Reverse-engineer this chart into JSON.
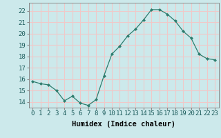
{
  "x": [
    0,
    1,
    2,
    3,
    4,
    5,
    6,
    7,
    8,
    9,
    10,
    11,
    12,
    13,
    14,
    15,
    16,
    17,
    18,
    19,
    20,
    21,
    22,
    23
  ],
  "y": [
    15.8,
    15.6,
    15.5,
    15.0,
    14.1,
    14.5,
    13.9,
    13.7,
    14.2,
    16.3,
    18.2,
    18.9,
    19.8,
    20.4,
    21.2,
    22.1,
    22.1,
    21.7,
    21.1,
    20.2,
    19.6,
    18.2,
    17.8,
    17.7
  ],
  "line_color": "#2e7d6e",
  "marker": "D",
  "marker_size": 2.0,
  "bg_color": "#cce9eb",
  "grid_color": "#f0c8c8",
  "xlabel": "Humidex (Indice chaleur)",
  "xlabel_fontsize": 7.5,
  "ylabel_ticks": [
    14,
    15,
    16,
    17,
    18,
    19,
    20,
    21,
    22
  ],
  "xlim": [
    -0.5,
    23.5
  ],
  "ylim": [
    13.5,
    22.7
  ],
  "tick_fontsize": 6.5,
  "spine_color": "#888888"
}
